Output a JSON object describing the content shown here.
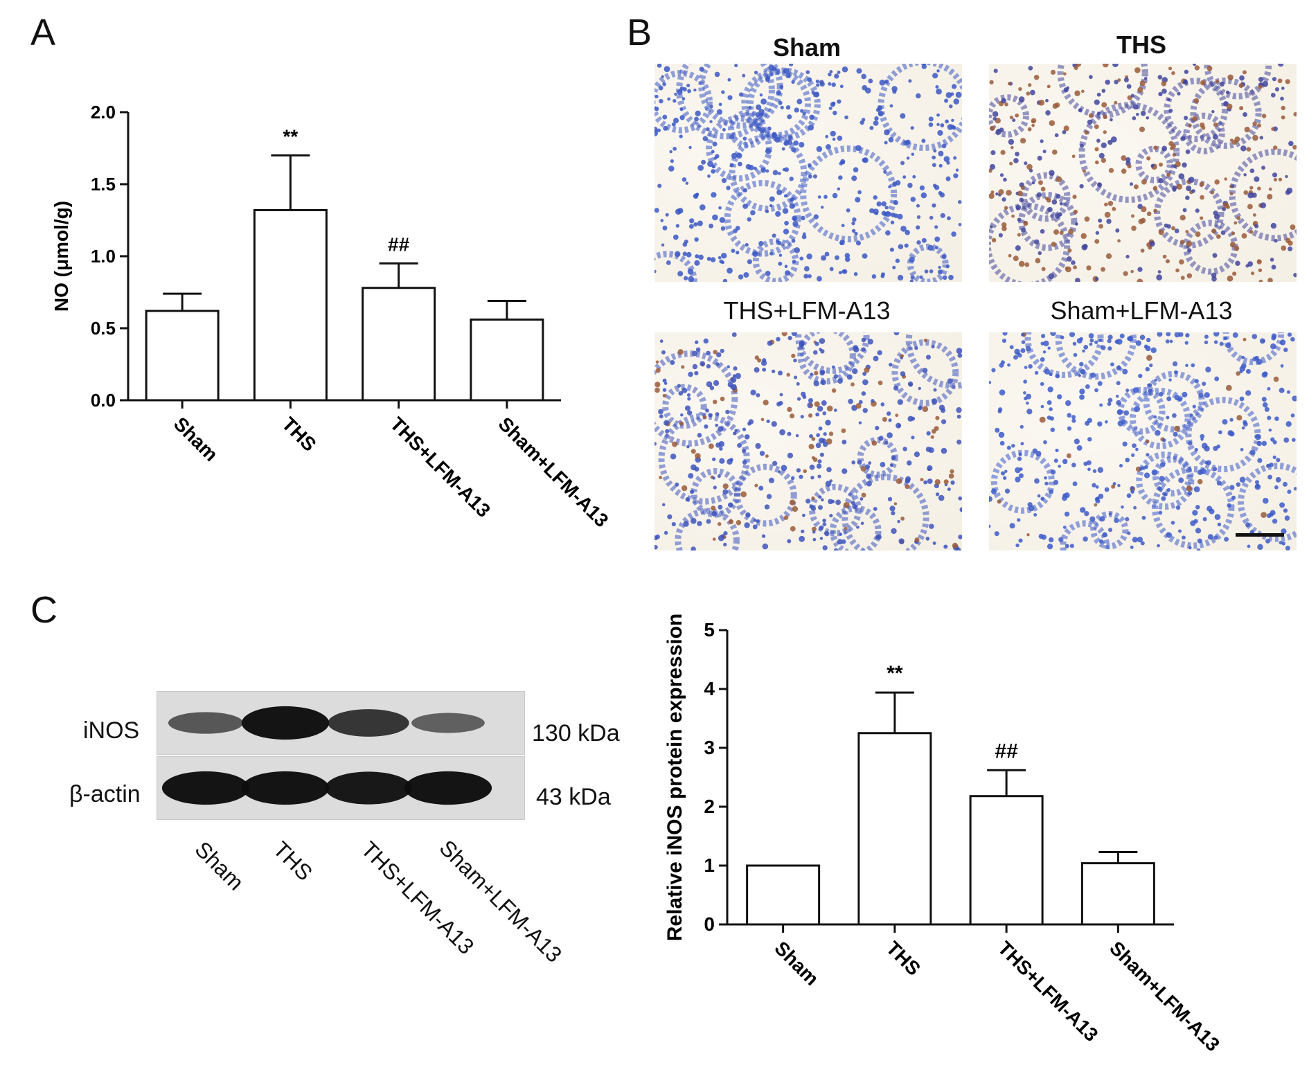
{
  "panel_labels": {
    "a": "A",
    "b": "B",
    "c": "C"
  },
  "chart_data": [
    {
      "type": "bar",
      "panel": "A",
      "categories": [
        "Sham",
        "THS",
        "THS+LFM-A13",
        "Sham+LFM-A13"
      ],
      "values": [
        0.62,
        1.32,
        0.78,
        0.56
      ],
      "errors": [
        0.12,
        0.38,
        0.17,
        0.13
      ],
      "annotations": [
        "",
        "**",
        "##",
        ""
      ],
      "title": "",
      "xlabel": "",
      "ylabel": "NO (μmol/g)",
      "ylim": [
        0.0,
        2.0
      ],
      "yticks": [
        "0.0",
        "0.5",
        "1.0",
        "1.5",
        "2.0"
      ],
      "grid": false
    },
    {
      "type": "bar",
      "panel": "C",
      "categories": [
        "Sham",
        "THS",
        "THS+LFM-A13",
        "Sham+LFM-A13"
      ],
      "values": [
        1.0,
        3.25,
        2.18,
        1.04
      ],
      "errors": [
        0.0,
        0.69,
        0.44,
        0.19
      ],
      "annotations": [
        "",
        "**",
        "##",
        ""
      ],
      "title": "",
      "xlabel": "",
      "ylabel": "Relative iNOS protein expression",
      "ylim": [
        0,
        5
      ],
      "yticks": [
        "0",
        "1",
        "2",
        "3",
        "4",
        "5"
      ],
      "grid": false
    }
  ],
  "micrographs": {
    "titles": [
      "Sham",
      "THS",
      "THS+LFM-A13",
      "Sham+LFM-A13"
    ]
  },
  "western_blot": {
    "rows": [
      {
        "label": "iNOS",
        "size": "130 kDa",
        "intensities": [
          0.45,
          0.95,
          0.7,
          0.38
        ]
      },
      {
        "label": "β-actin",
        "size": "43 kDa",
        "intensities": [
          0.95,
          0.95,
          0.92,
          0.95
        ]
      }
    ],
    "lanes": [
      "Sham",
      "THS",
      "THS+LFM-A13",
      "Sham+LFM-A13"
    ]
  }
}
